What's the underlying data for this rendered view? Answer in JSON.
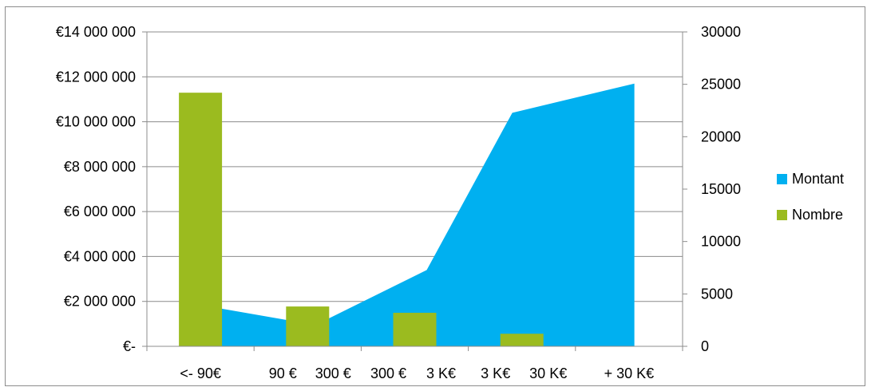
{
  "chart_data": {
    "type": "bar",
    "categories": [
      "<- 90€",
      "90 € 300 €",
      "300 € 3 K€",
      "3 K€ 30 K€",
      "+ 30 K€"
    ],
    "series": [
      {
        "name": "Montant",
        "type": "area",
        "axis": "left",
        "color": "#00b0f0",
        "values": [
          1800000,
          950000,
          3400000,
          10400000,
          11700000
        ]
      },
      {
        "name": "Nombre",
        "type": "bar",
        "axis": "right",
        "color": "#9bbb1f",
        "values": [
          24200,
          3800,
          3200,
          1200,
          0
        ]
      }
    ],
    "y_left": {
      "ylim": [
        0,
        14000000
      ],
      "ticks": [
        0,
        2000000,
        4000000,
        6000000,
        8000000,
        10000000,
        12000000,
        14000000
      ],
      "tick_labels": [
        "€-",
        "€2 000 000",
        "€4 000 000",
        "€6 000 000",
        "€8 000 000",
        "€10 000 000",
        "€12 000 000",
        "€14 000 000"
      ]
    },
    "y_right": {
      "ylim": [
        0,
        30000
      ],
      "ticks": [
        0,
        5000,
        10000,
        15000,
        20000,
        25000,
        30000
      ],
      "tick_labels": [
        "0",
        "5000",
        "10000",
        "15000",
        "20000",
        "25000",
        "30000"
      ]
    },
    "x_tick_labels": [
      "<- 90€",
      "90 €",
      "300 €",
      "300 €",
      "3 K€",
      "3 K€",
      "30 K€",
      "+ 30 K€"
    ],
    "grid": "horizontal",
    "legend": {
      "position": "right",
      "items": [
        {
          "label": "Montant",
          "color": "#00b0f0"
        },
        {
          "label": "Nombre",
          "color": "#9bbb1f"
        }
      ]
    }
  }
}
